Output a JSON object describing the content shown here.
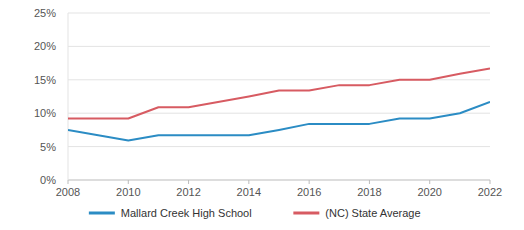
{
  "chart_data": {
    "type": "line",
    "x": [
      2008,
      2010,
      2011,
      2012,
      2014,
      2015,
      2016,
      2017,
      2018,
      2019,
      2020,
      2021,
      2022
    ],
    "series": [
      {
        "name": "Mallard Creek High School",
        "color": "#2b8cc4",
        "values": [
          7.5,
          5.9,
          6.7,
          6.7,
          6.7,
          7.5,
          8.4,
          8.4,
          8.4,
          9.2,
          9.2,
          10.0,
          11.7
        ]
      },
      {
        "name": "(NC) State Average",
        "color": "#d75b62",
        "values": [
          9.2,
          9.2,
          10.9,
          10.9,
          12.5,
          13.4,
          13.4,
          14.2,
          14.2,
          15.0,
          15.0,
          15.9,
          16.7
        ]
      }
    ],
    "xlim": [
      2008,
      2022
    ],
    "xticks": [
      2008,
      2010,
      2012,
      2014,
      2016,
      2018,
      2020,
      2022
    ],
    "ylim": [
      0,
      25
    ],
    "yticks": [
      {
        "value": 0,
        "label": "0%"
      },
      {
        "value": 5,
        "label": "5%"
      },
      {
        "value": 10,
        "label": "10%"
      },
      {
        "value": 15,
        "label": "15%"
      },
      {
        "value": 20,
        "label": "20%"
      },
      {
        "value": 25,
        "label": "25%"
      }
    ],
    "grid": true,
    "legend": "bottom"
  }
}
